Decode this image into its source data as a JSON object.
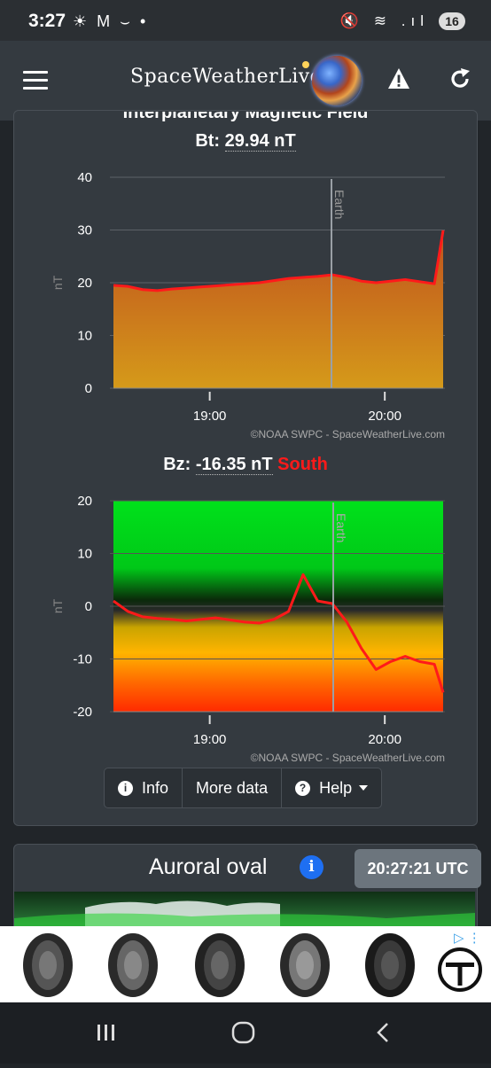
{
  "status_bar": {
    "time": "3:27",
    "left_icons": "☀ M ⌣ •",
    "right_icons": "🔇 ≋ .ıl",
    "battery": "16"
  },
  "app_bar": {
    "logo_text": "SpaceWeatherLive",
    "menu_icon": "hamburger-icon",
    "warning_icon": "warning-icon",
    "refresh_icon": "refresh-icon"
  },
  "imf_card": {
    "title_cutoff": "Interplanetary Magnetic Field",
    "bt_label": "Bt:",
    "bt_value": "29.94 nT",
    "bz_label": "Bz:",
    "bz_value": "-16.35 nT",
    "bz_direction": "South"
  },
  "chart_data": [
    {
      "type": "area",
      "ylabel": "nT",
      "ylim": [
        0,
        40
      ],
      "yticks": [
        0,
        10,
        20,
        30,
        40
      ],
      "xticks": [
        "19:00",
        "20:00"
      ],
      "marker": "Earth",
      "credit": "©NOAA SWPC - SpaceWeatherLive.com",
      "series": [
        {
          "x": [
            "18:27",
            "18:32",
            "18:37",
            "18:42",
            "18:47",
            "18:52",
            "18:57",
            "19:02",
            "19:07",
            "19:12",
            "19:17",
            "19:22",
            "19:27",
            "19:32",
            "19:37",
            "19:42",
            "19:47",
            "19:52",
            "19:57",
            "20:02",
            "20:07",
            "20:12",
            "20:17",
            "20:20"
          ],
          "values": [
            19.5,
            19.3,
            18.7,
            18.5,
            18.8,
            19.0,
            19.2,
            19.4,
            19.6,
            19.8,
            20.0,
            20.4,
            20.8,
            21.0,
            21.2,
            21.5,
            21.0,
            20.3,
            20.0,
            20.3,
            20.6,
            20.2,
            19.8,
            29.94
          ]
        }
      ]
    },
    {
      "type": "line",
      "ylabel": "nT",
      "ylim": [
        -20,
        20
      ],
      "yticks": [
        -20,
        -10,
        0,
        10,
        20
      ],
      "xticks": [
        "19:00",
        "20:00"
      ],
      "marker": "Earth",
      "credit": "©NOAA SWPC - SpaceWeatherLive.com",
      "series": [
        {
          "x": [
            "18:27",
            "18:32",
            "18:37",
            "18:42",
            "18:47",
            "18:52",
            "18:57",
            "19:02",
            "19:07",
            "19:12",
            "19:17",
            "19:22",
            "19:27",
            "19:32",
            "19:37",
            "19:42",
            "19:47",
            "19:52",
            "19:57",
            "20:02",
            "20:07",
            "20:12",
            "20:17",
            "20:20"
          ],
          "values": [
            1.0,
            -1.0,
            -2.0,
            -2.3,
            -2.5,
            -2.8,
            -2.5,
            -2.2,
            -2.6,
            -3.0,
            -3.2,
            -2.5,
            -1.0,
            6.0,
            1.0,
            0.5,
            -3.0,
            -8.0,
            -12.0,
            -10.5,
            -9.5,
            -10.5,
            -11.0,
            -16.35
          ]
        }
      ]
    }
  ],
  "buttons": {
    "info": "Info",
    "more_data": "More data",
    "help": "Help"
  },
  "auroral": {
    "title": "Auroral oval",
    "time": "20:27:21 UTC"
  },
  "colors": {
    "bt_fill_top": "#c0521e",
    "bt_fill_bottom": "#d59a1a",
    "line": "#ff1a1a",
    "south": "#ff1a1a",
    "info_blue": "#1e6ff2"
  }
}
